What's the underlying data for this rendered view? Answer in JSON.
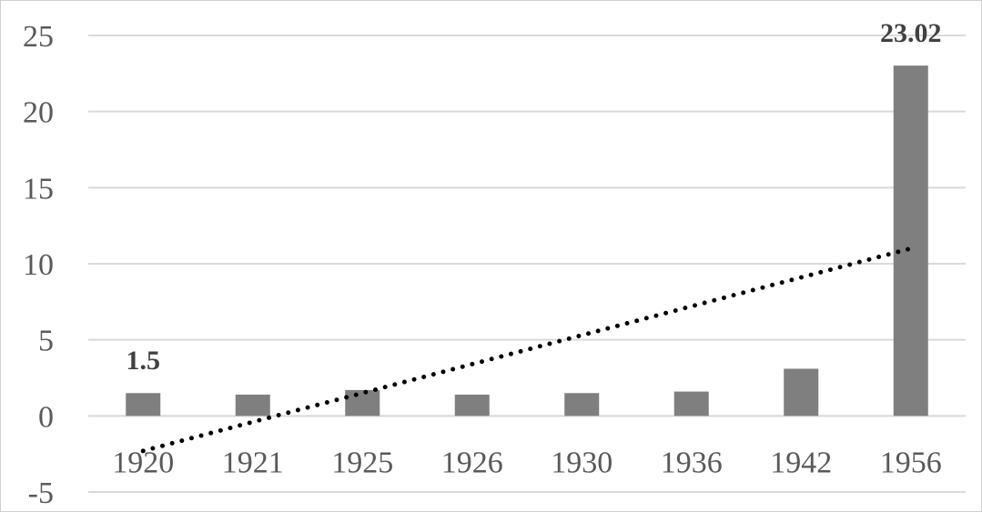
{
  "chart_data": {
    "type": "bar",
    "title": "",
    "xlabel": "",
    "ylabel": "",
    "categories": [
      "1920",
      "1921",
      "1925",
      "1926",
      "1930",
      "1936",
      "1942",
      "1956"
    ],
    "values": [
      1.5,
      1.4,
      1.7,
      1.4,
      1.5,
      1.6,
      3.1,
      23.02
    ],
    "ylim": [
      -5,
      25
    ],
    "yticks": [
      -5,
      0,
      5,
      10,
      15,
      20,
      25
    ],
    "ytick_labels": [
      "-5",
      "0",
      "5",
      "10",
      "15",
      "20",
      "25"
    ],
    "data_labels": [
      {
        "category": "1920",
        "text": "1.5"
      },
      {
        "category": "1956",
        "text": "23.02"
      }
    ],
    "trendline": {
      "type": "linear",
      "style": "dotted",
      "start_y": -2.3,
      "end_y": 11.0
    },
    "grid": true,
    "legend": "none",
    "colors": {
      "bar": "#7f7f7f",
      "grid": "#d9d9d9",
      "trendline": "#000000",
      "tick_text": "#595959"
    }
  }
}
